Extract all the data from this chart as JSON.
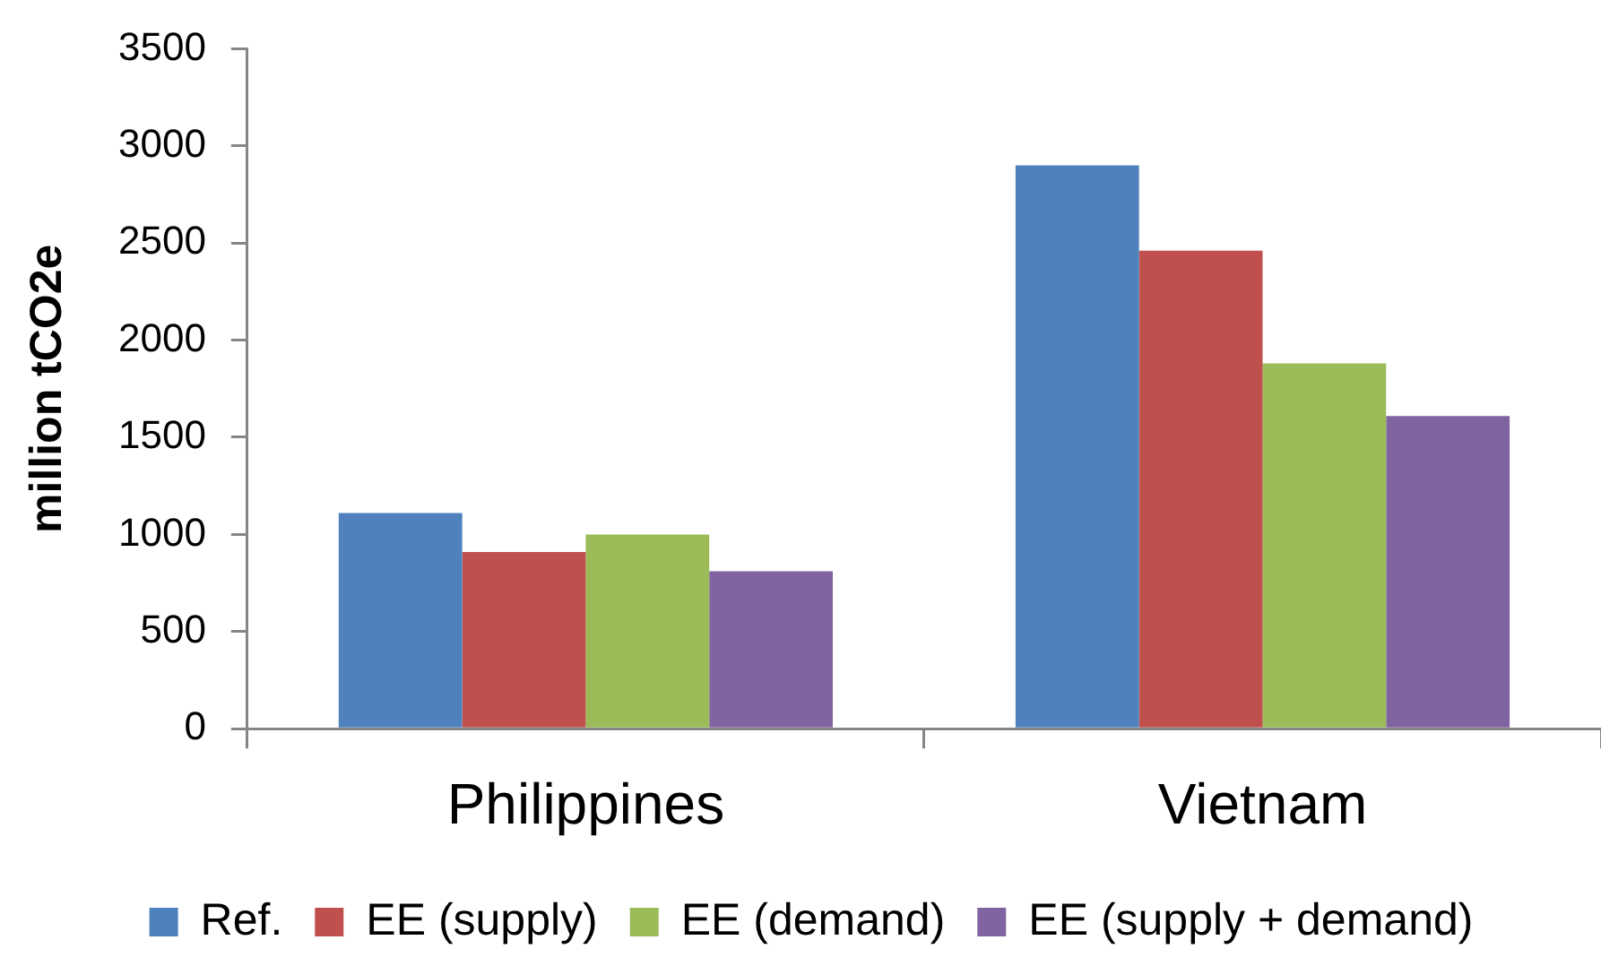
{
  "chart_data": {
    "type": "bar",
    "ylabel": "million tCO2e",
    "categories": [
      "Philippines",
      "Vietnam"
    ],
    "series": [
      {
        "name": "Ref.",
        "color": "#4f81bd",
        "values": [
          1110,
          2900
        ]
      },
      {
        "name": "EE (supply)",
        "color": "#c0504d",
        "values": [
          910,
          2460
        ]
      },
      {
        "name": "EE (demand)",
        "color": "#9bbb59",
        "values": [
          1000,
          1880
        ]
      },
      {
        "name": "EE (supply + demand)",
        "color": "#8064a2",
        "values": [
          810,
          1610
        ]
      }
    ],
    "ylim": [
      0,
      3500
    ],
    "yticks": [
      0,
      500,
      1000,
      1500,
      2000,
      2500,
      3000,
      3500
    ],
    "grid": false,
    "legend": "bottom"
  }
}
